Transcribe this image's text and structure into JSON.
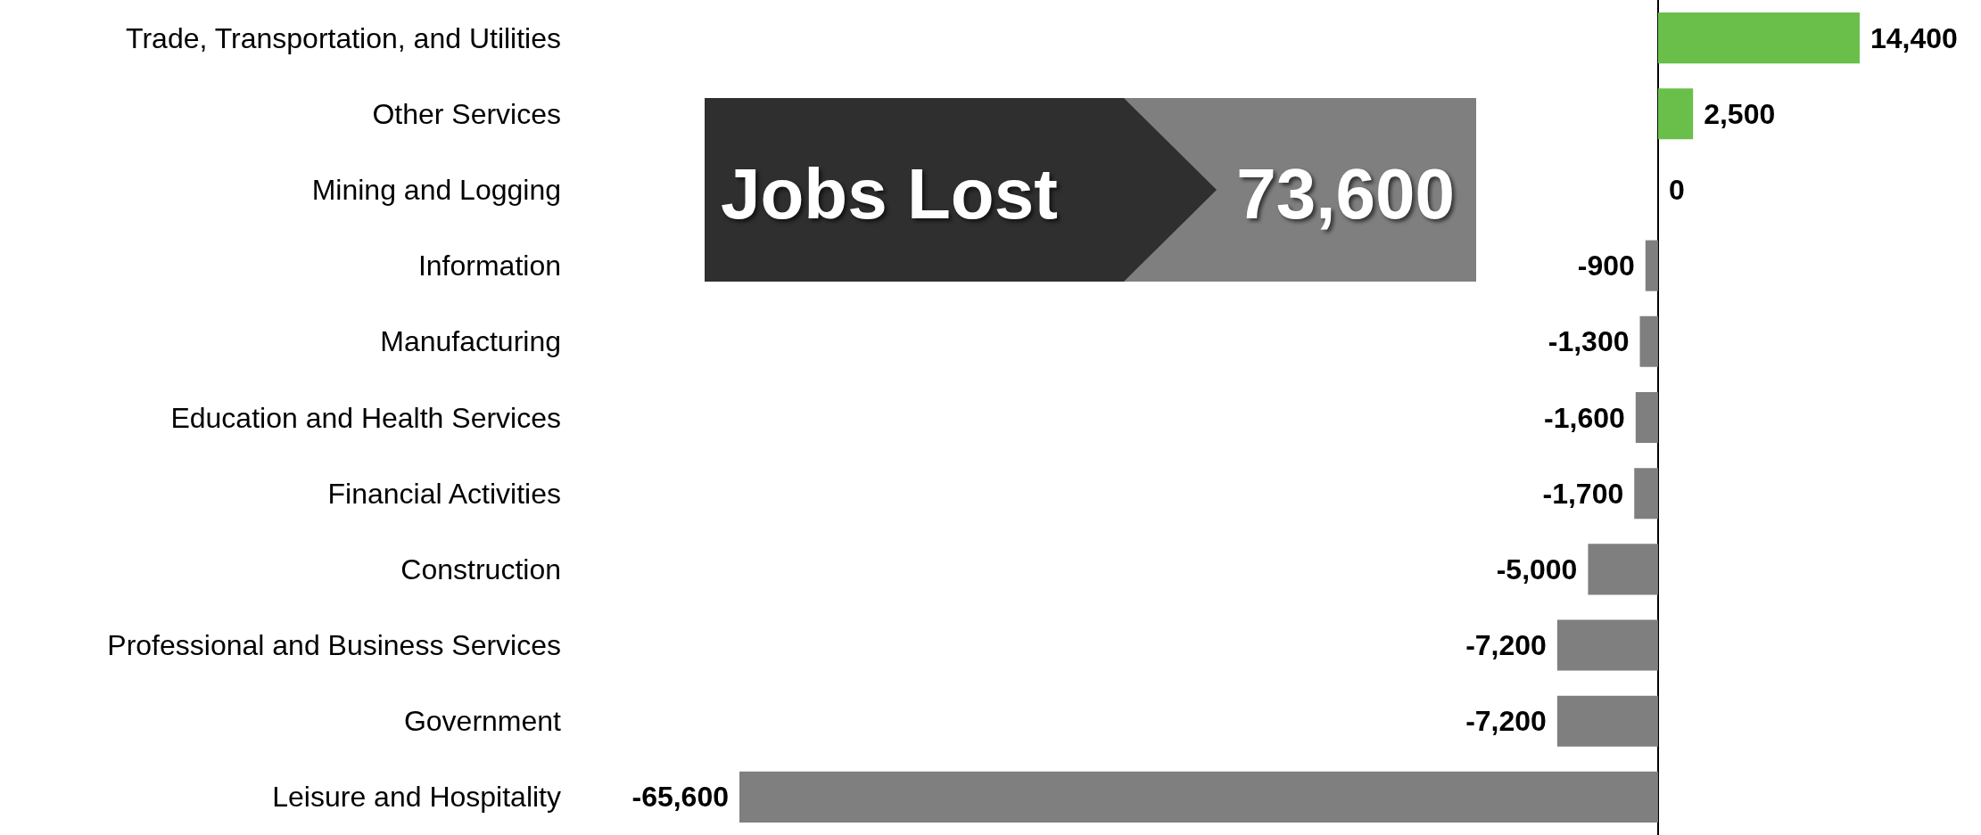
{
  "chart_data": {
    "type": "bar",
    "orientation": "horizontal",
    "categories": [
      "Trade, Transportation, and Utilities",
      "Other Services",
      "Mining and Logging",
      "Information",
      "Manufacturing",
      "Education and Health Services",
      "Financial Activities",
      "Construction",
      "Professional and Business Services",
      "Government",
      "Leisure and Hospitality"
    ],
    "values": [
      14400,
      2500,
      0,
      -900,
      -1300,
      -1600,
      -1700,
      -5000,
      -7200,
      -7200,
      -65600
    ],
    "colors": [
      "#6abf4b",
      "#6abf4b",
      "#7f7f7f",
      "#7f7f7f",
      "#7f7f7f",
      "#7f7f7f",
      "#7f7f7f",
      "#7f7f7f",
      "#7f7f7f",
      "#7f7f7f",
      "#7f7f7f"
    ],
    "value_labels": [
      "14,400",
      "2,500",
      "0",
      "-900",
      "-1,300",
      "-1,600",
      "-1,700",
      "-5,000",
      "-7,200",
      "-7,200",
      "-65,600"
    ],
    "tick_labels": "y",
    "annotations": [
      "Jobs Lost",
      "73,600"
    ]
  }
}
